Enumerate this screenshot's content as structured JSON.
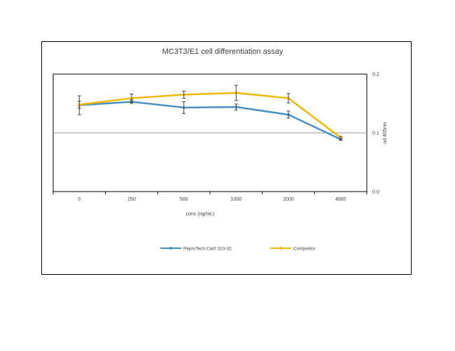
{
  "chart_data": {
    "type": "line",
    "title": "MC3T3/E1 cell differentiation assay",
    "xlabel": "conc (ng/mL)",
    "ylabel": "od 405nm",
    "categories": [
      "0",
      "250",
      "500",
      "1000",
      "2000",
      "4000"
    ],
    "ylim": [
      0.0,
      0.2
    ],
    "yticks": [
      "0.0",
      "0.1",
      "0.2"
    ],
    "y_axis_side": "right",
    "grid": false,
    "reference_line": 0.1,
    "legend_position": "bottom",
    "series": [
      {
        "name": "PeproTech Cat# 310-32",
        "color": "#4a90c4",
        "values": [
          0.147,
          0.153,
          0.143,
          0.144,
          0.131,
          0.089
        ],
        "errors": [
          0.016,
          0.003,
          0.01,
          0.005,
          0.006,
          0.002
        ]
      },
      {
        "name": "Competitor",
        "color": "#f0b800",
        "values": [
          0.148,
          0.159,
          0.165,
          0.168,
          0.159,
          0.092
        ],
        "errors": [
          0.006,
          0.007,
          0.006,
          0.013,
          0.008,
          0.002
        ]
      }
    ]
  }
}
